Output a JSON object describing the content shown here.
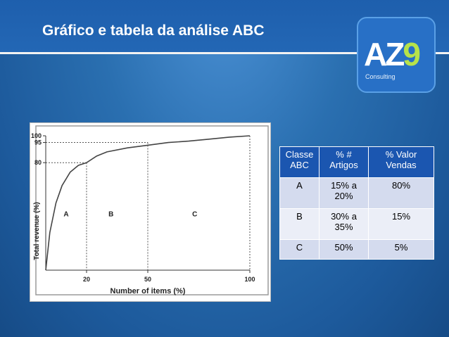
{
  "slide": {
    "title": "Gráfico e tabela da análise ABC"
  },
  "logo": {
    "text_main": "AZ",
    "text_nine": "9",
    "subtitle": "Consulting",
    "accent_color": "#b7e24a"
  },
  "chart_data": {
    "type": "line",
    "xlabel": "Number of items (%)",
    "ylabel": "Total revenue (%)",
    "x_ticks": [
      20,
      50,
      100
    ],
    "y_ticks": [
      80,
      95,
      100
    ],
    "xlim": [
      0,
      100
    ],
    "ylim": [
      0,
      100
    ],
    "grid": false,
    "series": [
      {
        "x": [
          0,
          2,
          5,
          8,
          12,
          16,
          20,
          25,
          30,
          40,
          50,
          60,
          70,
          80,
          90,
          100
        ],
        "y": [
          0,
          28,
          50,
          63,
          73,
          78,
          80,
          85,
          88,
          91,
          93,
          95,
          96,
          97.5,
          99,
          100
        ]
      }
    ],
    "region_labels": [
      {
        "text": "A",
        "x": 10,
        "y": 40
      },
      {
        "text": "B",
        "x": 32,
        "y": 40
      },
      {
        "text": "C",
        "x": 73,
        "y": 40
      }
    ],
    "guide_lines": [
      {
        "x": 20,
        "y": 80
      },
      {
        "x": 50,
        "y": 95
      }
    ]
  },
  "table": {
    "headers": [
      {
        "line1": "Classe",
        "line2": "ABC"
      },
      {
        "line1": "% #",
        "line2": "Artigos"
      },
      {
        "line1": "% Valor",
        "line2": "Vendas"
      }
    ],
    "rows": [
      {
        "classe": "A",
        "artigos_l1": "15% a",
        "artigos_l2": "20%",
        "vendas": "80%"
      },
      {
        "classe": "B",
        "artigos_l1": "30% a",
        "artigos_l2": "35%",
        "vendas": "15%"
      },
      {
        "classe": "C",
        "artigos_l1": "50%",
        "artigos_l2": "",
        "vendas": "5%"
      }
    ]
  }
}
